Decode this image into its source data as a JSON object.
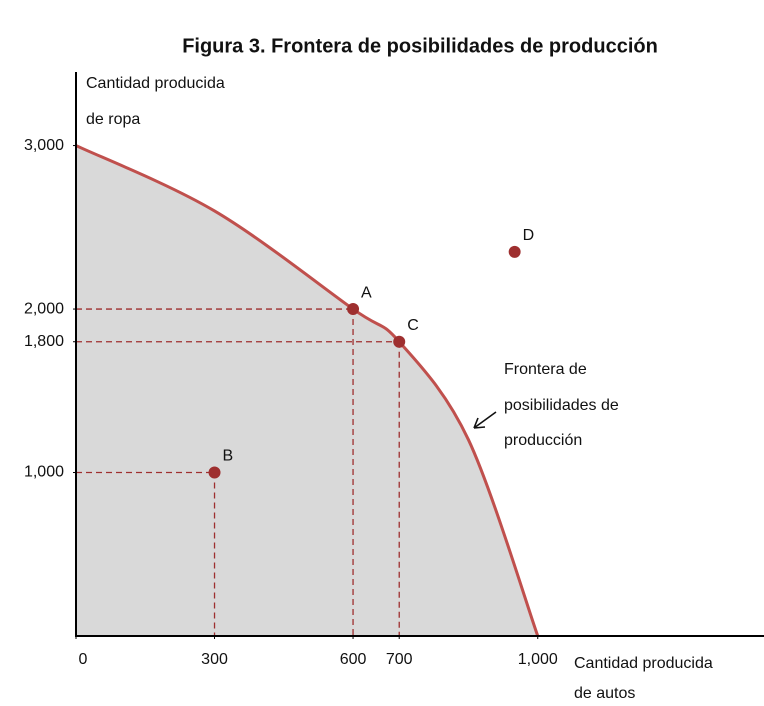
{
  "chart_data": {
    "type": "frontier",
    "title": "Figura 3. Frontera de posibilidades de producción",
    "y_label": [
      "Cantidad producida",
      "de ropa"
    ],
    "x_label": [
      "Cantidad producida",
      "de autos"
    ],
    "annotation": [
      "Frontera de",
      "posibilidades de",
      "producción"
    ],
    "xlim": [
      0,
      1490
    ],
    "ylim": [
      0,
      3450
    ],
    "xticks": [
      0,
      300,
      600,
      700,
      {
        "value": 1000,
        "label": "1,000"
      }
    ],
    "yticks": [
      {
        "value": 1000,
        "label": "1,000"
      },
      {
        "value": 1800,
        "label": "1,800"
      },
      {
        "value": 2000,
        "label": "2,000"
      },
      {
        "value": 3000,
        "label": "3,000"
      }
    ],
    "frontier": {
      "color": "#c0504d",
      "fill": "#d9d9d9",
      "x": [
        0,
        300,
        600,
        700,
        850,
        1000
      ],
      "y": [
        3000,
        2600,
        2000,
        1800,
        1200,
        0
      ]
    },
    "points": {
      "color": "#9e2f2f",
      "labels": [
        "A",
        "B",
        "C",
        "D"
      ],
      "x": [
        600,
        300,
        700,
        950
      ],
      "y": [
        2000,
        1000,
        1800,
        2350
      ],
      "guides": [
        true,
        true,
        true,
        false
      ]
    }
  }
}
